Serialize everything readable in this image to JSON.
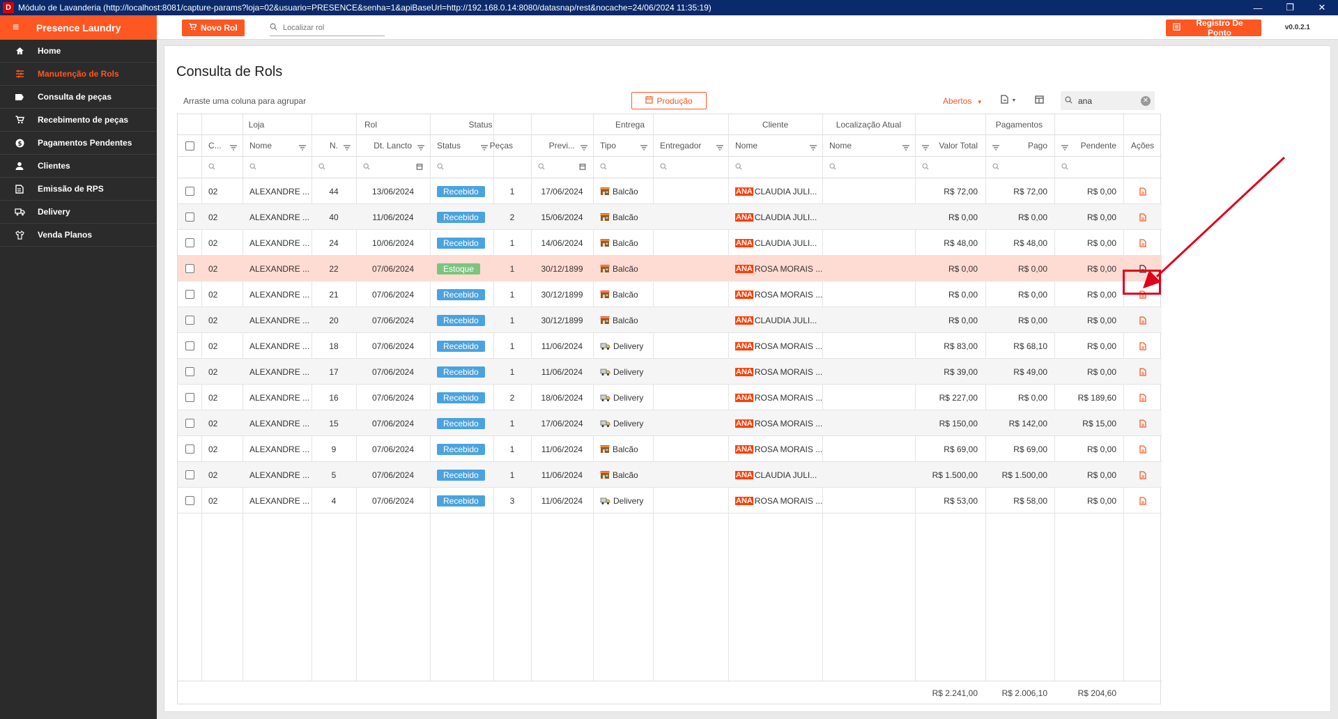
{
  "window": {
    "title": "Módulo de Lavanderia (http://localhost:8081/capture-params?loja=02&usuario=PRESENCE&senha=1&apiBaseUrl=http://192.168.0.14:8080/datasnap/rest&nocache=24/06/2024 11:35:19)",
    "icon_letter": "D",
    "minimize": "—",
    "maximize": "❐",
    "close": "✕"
  },
  "brand": "Presence Laundry",
  "sidebar": {
    "items": [
      {
        "label": "Home",
        "icon": "home-icon",
        "active": false
      },
      {
        "label": "Manutenção de Rols",
        "icon": "sliders-icon",
        "active": true
      },
      {
        "label": "Consulta de peças",
        "icon": "tag-icon",
        "active": false
      },
      {
        "label": "Recebimento de peças",
        "icon": "cart-icon",
        "active": false
      },
      {
        "label": "Pagamentos Pendentes",
        "icon": "dollar-icon",
        "active": false
      },
      {
        "label": "Clientes",
        "icon": "person-icon",
        "active": false
      },
      {
        "label": "Emissão de RPS",
        "icon": "receipt-icon",
        "active": false
      },
      {
        "label": "Delivery",
        "icon": "truck-icon",
        "active": false
      },
      {
        "label": "Venda Planos",
        "icon": "tshirt-icon",
        "active": false
      }
    ]
  },
  "header": {
    "new_button": "Novo Rol",
    "search_placeholder": "Localizar rol",
    "punch_button": "Registro De Ponto",
    "version": "v0.0.2.1"
  },
  "page": {
    "title": "Consulta de Rols",
    "group_hint": "Arraste uma coluna para agrupar",
    "production_button": "Produção",
    "filter_dropdown": "Abertos",
    "search_value": "ana"
  },
  "colors": {
    "accent": "#ff5722",
    "received": "#4aa3df",
    "stock": "#7cc47f",
    "highlight_row": "#ffdcd3",
    "annotation": "#e0001b"
  },
  "grid": {
    "bands": {
      "loja": "Loja",
      "rol": "Rol",
      "status": "Status",
      "entrega": "Entrega",
      "cliente": "Cliente",
      "localizacao": "Localização Atual",
      "pagamentos": "Pagamentos"
    },
    "columns": {
      "codigo": "C...",
      "loja_nome": "Nome",
      "numero": "N.",
      "dt_lancto": "Dt. Lancto",
      "status": "Status",
      "pecas": "Peças",
      "previsao": "Previ...",
      "tipo": "Tipo",
      "entregador": "Entregador",
      "cliente_nome": "Nome",
      "loc_nome": "Nome",
      "valor_total": "Valor Total",
      "pago": "Pago",
      "pendente": "Pendente",
      "acoes": "Ações"
    },
    "rows": [
      {
        "codigo": "02",
        "loja": "ALEXANDRE ...",
        "numero": "44",
        "dt": "13/06/2024",
        "status": "Recebido",
        "pecas": "1",
        "prev": "17/06/2024",
        "tipo": "Balcão",
        "tag": "ANA",
        "cliente": "CLAUDIA JULI...",
        "total": "R$ 72,00",
        "pago": "R$ 72,00",
        "pendente": "R$ 0,00"
      },
      {
        "codigo": "02",
        "loja": "ALEXANDRE ...",
        "numero": "40",
        "dt": "11/06/2024",
        "status": "Recebido",
        "pecas": "2",
        "prev": "15/06/2024",
        "tipo": "Balcão",
        "tag": "ANA",
        "cliente": "CLAUDIA JULI...",
        "total": "R$ 0,00",
        "pago": "R$ 0,00",
        "pendente": "R$ 0,00"
      },
      {
        "codigo": "02",
        "loja": "ALEXANDRE ...",
        "numero": "24",
        "dt": "10/06/2024",
        "status": "Recebido",
        "pecas": "1",
        "prev": "14/06/2024",
        "tipo": "Balcão",
        "tag": "ANA",
        "cliente": "CLAUDIA JULI...",
        "total": "R$ 48,00",
        "pago": "R$ 48,00",
        "pendente": "R$ 0,00"
      },
      {
        "codigo": "02",
        "loja": "ALEXANDRE ...",
        "numero": "22",
        "dt": "07/06/2024",
        "status": "Estoque",
        "pecas": "1",
        "prev": "30/12/1899",
        "tipo": "Balcão",
        "tag": "ANA",
        "cliente": "ROSA MORAIS ...",
        "total": "R$ 0,00",
        "pago": "R$ 0,00",
        "pendente": "R$ 0,00"
      },
      {
        "codigo": "02",
        "loja": "ALEXANDRE ...",
        "numero": "21",
        "dt": "07/06/2024",
        "status": "Recebido",
        "pecas": "1",
        "prev": "30/12/1899",
        "tipo": "Balcão",
        "tag": "ANA",
        "cliente": "ROSA MORAIS ...",
        "total": "R$ 0,00",
        "pago": "R$ 0,00",
        "pendente": "R$ 0,00"
      },
      {
        "codigo": "02",
        "loja": "ALEXANDRE ...",
        "numero": "20",
        "dt": "07/06/2024",
        "status": "Recebido",
        "pecas": "1",
        "prev": "30/12/1899",
        "tipo": "Balcão",
        "tag": "ANA",
        "cliente": "CLAUDIA JULI...",
        "total": "R$ 0,00",
        "pago": "R$ 0,00",
        "pendente": "R$ 0,00"
      },
      {
        "codigo": "02",
        "loja": "ALEXANDRE ...",
        "numero": "18",
        "dt": "07/06/2024",
        "status": "Recebido",
        "pecas": "1",
        "prev": "11/06/2024",
        "tipo": "Delivery",
        "tag": "ANA",
        "cliente": "ROSA MORAIS ...",
        "total": "R$ 83,00",
        "pago": "R$ 68,10",
        "pendente": "R$ 0,00"
      },
      {
        "codigo": "02",
        "loja": "ALEXANDRE ...",
        "numero": "17",
        "dt": "07/06/2024",
        "status": "Recebido",
        "pecas": "1",
        "prev": "11/06/2024",
        "tipo": "Delivery",
        "tag": "ANA",
        "cliente": "ROSA MORAIS ...",
        "total": "R$ 39,00",
        "pago": "R$ 49,00",
        "pendente": "R$ 0,00"
      },
      {
        "codigo": "02",
        "loja": "ALEXANDRE ...",
        "numero": "16",
        "dt": "07/06/2024",
        "status": "Recebido",
        "pecas": "2",
        "prev": "18/06/2024",
        "tipo": "Delivery",
        "tag": "ANA",
        "cliente": "ROSA MORAIS ...",
        "total": "R$ 227,00",
        "pago": "R$ 0,00",
        "pendente": "R$ 189,60"
      },
      {
        "codigo": "02",
        "loja": "ALEXANDRE ...",
        "numero": "15",
        "dt": "07/06/2024",
        "status": "Recebido",
        "pecas": "1",
        "prev": "17/06/2024",
        "tipo": "Delivery",
        "tag": "ANA",
        "cliente": "ROSA MORAIS ...",
        "total": "R$ 150,00",
        "pago": "R$ 142,00",
        "pendente": "R$ 15,00"
      },
      {
        "codigo": "02",
        "loja": "ALEXANDRE ...",
        "numero": "9",
        "dt": "07/06/2024",
        "status": "Recebido",
        "pecas": "1",
        "prev": "11/06/2024",
        "tipo": "Balcão",
        "tag": "ANA",
        "cliente": "ROSA MORAIS ...",
        "total": "R$ 69,00",
        "pago": "R$ 69,00",
        "pendente": "R$ 0,00"
      },
      {
        "codigo": "02",
        "loja": "ALEXANDRE ...",
        "numero": "5",
        "dt": "07/06/2024",
        "status": "Recebido",
        "pecas": "1",
        "prev": "11/06/2024",
        "tipo": "Balcão",
        "tag": "ANA",
        "cliente": "CLAUDIA JULI...",
        "total": "R$ 1.500,00",
        "pago": "R$ 1.500,00",
        "pendente": "R$ 0,00"
      },
      {
        "codigo": "02",
        "loja": "ALEXANDRE ...",
        "numero": "4",
        "dt": "07/06/2024",
        "status": "Recebido",
        "pecas": "3",
        "prev": "11/06/2024",
        "tipo": "Delivery",
        "tag": "ANA",
        "cliente": "ROSA MORAIS ...",
        "total": "R$ 53,00",
        "pago": "R$ 58,00",
        "pendente": "R$ 0,00"
      }
    ],
    "highlighted_row": 3,
    "totals": {
      "total": "R$ 2.241,00",
      "pago": "R$ 2.006,10",
      "pendente": "R$ 204,60"
    }
  }
}
